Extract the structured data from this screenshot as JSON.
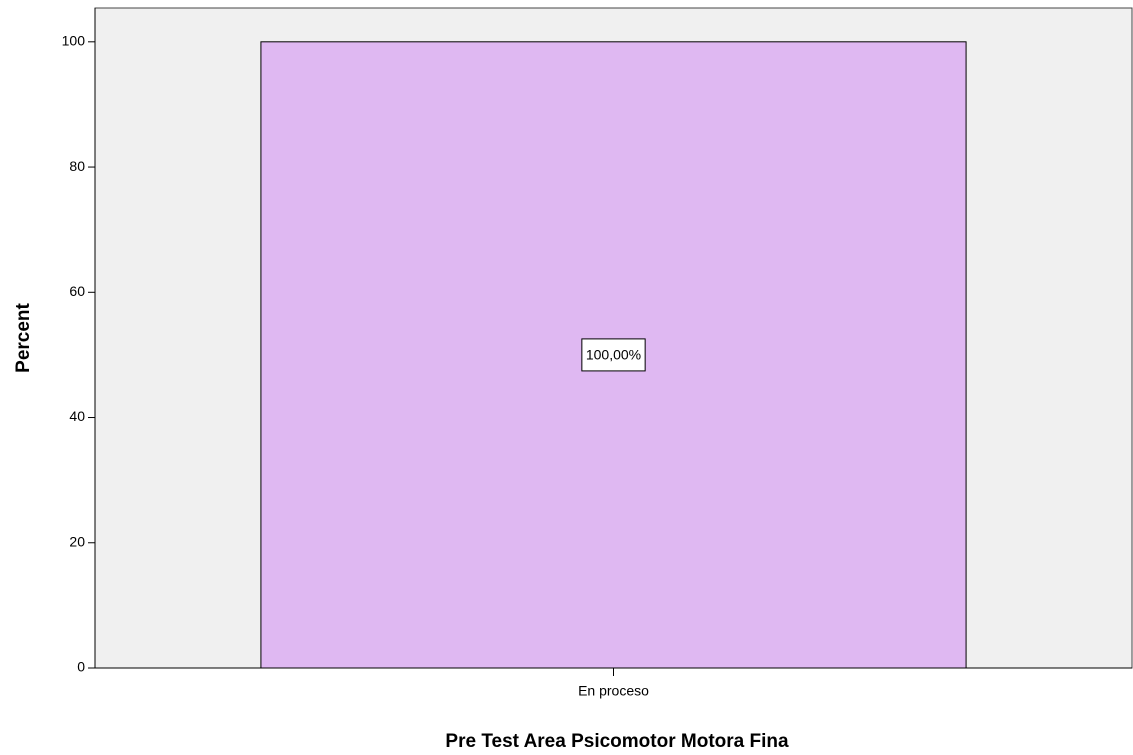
{
  "chart_data": {
    "type": "bar",
    "x_label": "Pre Test Area Psicomotor Motora Fina",
    "y_label": "Percent",
    "categories": [
      "En proceso"
    ],
    "values": [
      100
    ],
    "value_labels": [
      "100,00%"
    ],
    "color": "#dfb8f2",
    "ylim": [
      0,
      105.4
    ],
    "yticks": [
      0,
      20,
      40,
      60,
      80,
      100
    ],
    "grid": false
  }
}
